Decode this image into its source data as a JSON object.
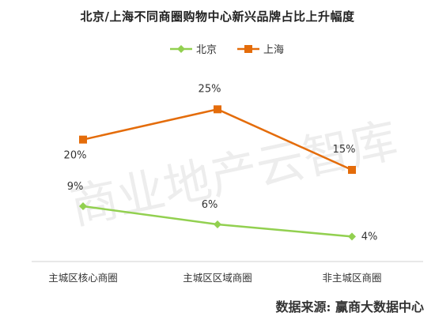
{
  "chart_data": {
    "type": "line",
    "title": "北京/上海不同商圈购物中心新兴品牌占比上升幅度",
    "categories": [
      "主城区核心商圈",
      "主城区区域商圈",
      "非主城区商圈"
    ],
    "series": [
      {
        "name": "北京",
        "values": [
          9,
          6,
          4
        ],
        "labels": [
          "9%",
          "6%",
          "4%"
        ],
        "color": "#92d050",
        "marker": "diamond"
      },
      {
        "name": "上海",
        "values": [
          20,
          25,
          15
        ],
        "labels": [
          "20%",
          "25%",
          "15%"
        ],
        "color": "#e46c0a",
        "marker": "square"
      }
    ],
    "xlabel": "",
    "ylabel": "",
    "y_axis_visible": false,
    "grid": false,
    "legend_position": "top"
  },
  "watermark": "商业地产云智库",
  "source": "数据来源:  赢商大数据中心"
}
